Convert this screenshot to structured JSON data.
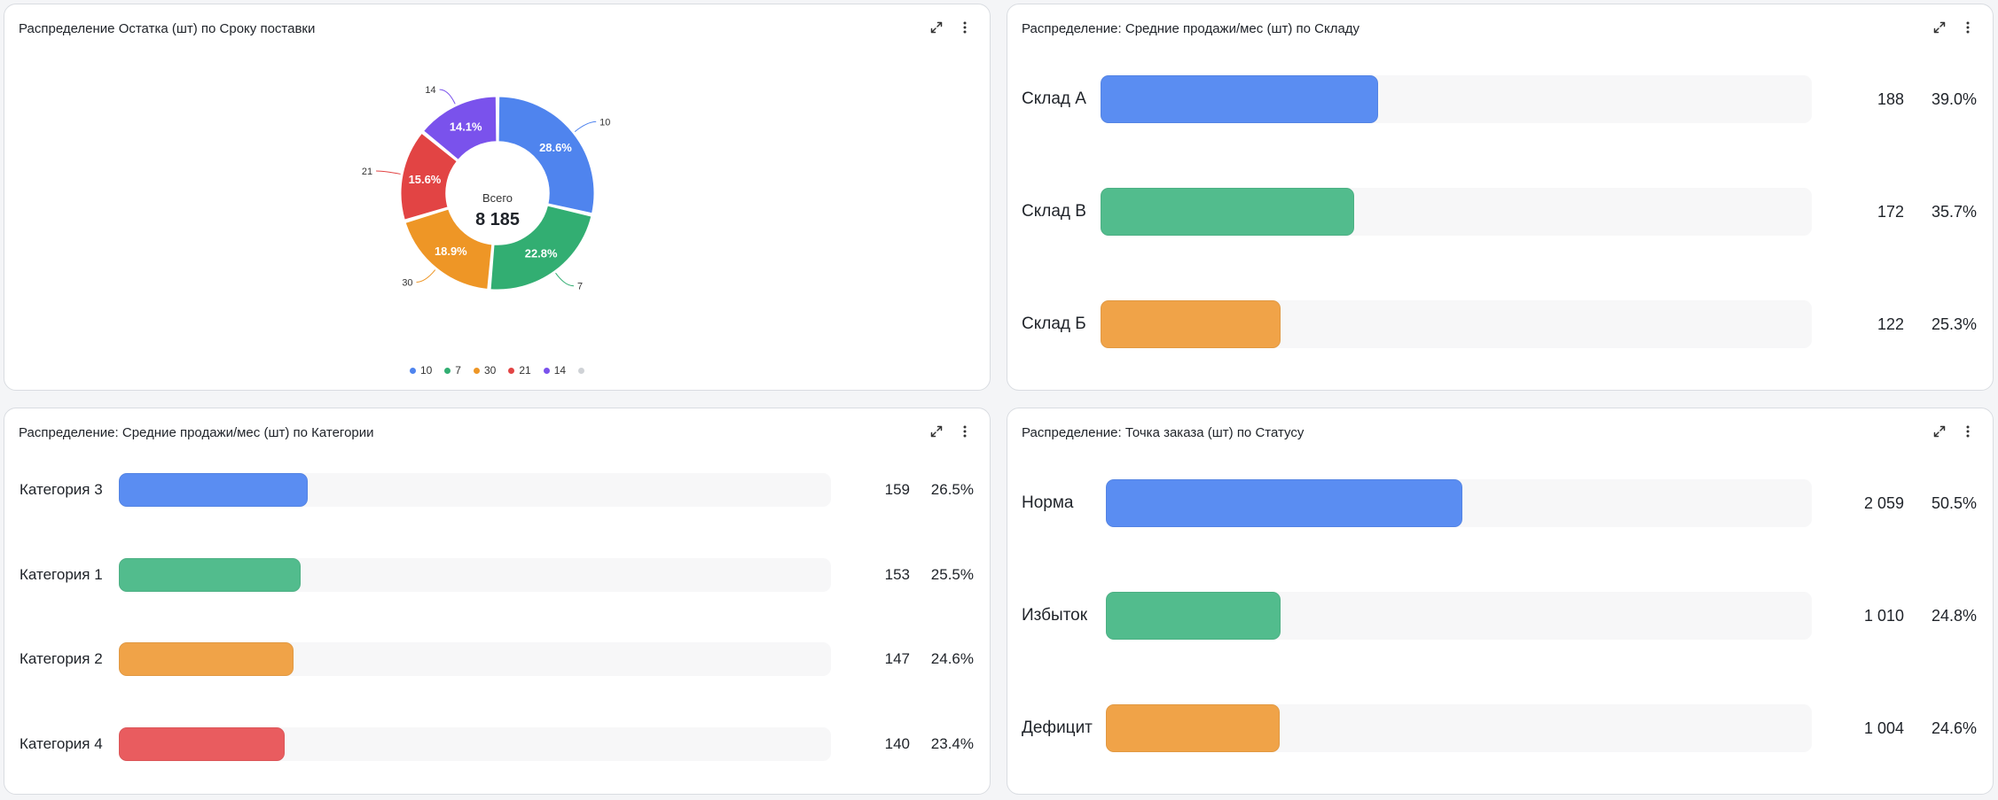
{
  "colors": {
    "blue": "#5a8df2",
    "green": "#52bc8d",
    "orange": "#f0a348",
    "red": "#e95c5f",
    "purple": "#7c5ce6",
    "grey": "#cfd2d6"
  },
  "icons": {
    "expand": "expand-icon",
    "menu": "kebab-menu-icon"
  },
  "panels": {
    "donut": {
      "title": "Распределение Остатка (шт) по Сроку поставки",
      "center_label": "Всего",
      "center_value": "8 185"
    },
    "warehouse": {
      "title": "Распределение: Средние продажи/мес (шт) по Складу"
    },
    "category": {
      "title": "Распределение: Средние продажи/мес (шт) по Категории"
    },
    "status": {
      "title": "Распределение: Точка заказа (шт) по Статусу"
    }
  },
  "chart_data": [
    {
      "type": "pie",
      "title": "Распределение Остатка (шт) по Сроку поставки",
      "donut": true,
      "total_label": "Всего",
      "total": 8185,
      "total_text": "8 185",
      "slices": [
        {
          "label": "10",
          "percent": 28.6,
          "percent_text": "28.6%",
          "color": "#4f84ee"
        },
        {
          "label": "7",
          "percent": 22.8,
          "percent_text": "22.8%",
          "color": "#32ae72"
        },
        {
          "label": "30",
          "percent": 18.9,
          "percent_text": "18.9%",
          "color": "#ee9626"
        },
        {
          "label": "21",
          "percent": 15.6,
          "percent_text": "15.6%",
          "color": "#e24444"
        },
        {
          "label": "14",
          "percent": 14.1,
          "percent_text": "14.1%",
          "color": "#7a52ec"
        }
      ],
      "legend": [
        "10",
        "7",
        "30",
        "21",
        "14",
        ""
      ],
      "legend_placement": "bottom"
    },
    {
      "type": "bar",
      "orientation": "horizontal",
      "title": "Распределение: Средние продажи/мес (шт) по Складу",
      "rows": [
        {
          "label": "Склад А",
          "value": 188,
          "value_text": "188",
          "percent": 39.0,
          "percent_text": "39.0%",
          "color": "#5a8df2"
        },
        {
          "label": "Склад В",
          "value": 172,
          "value_text": "172",
          "percent": 35.7,
          "percent_text": "35.7%",
          "color": "#52bc8d"
        },
        {
          "label": "Склад Б",
          "value": 122,
          "value_text": "122",
          "percent": 25.3,
          "percent_text": "25.3%",
          "color": "#f0a348"
        }
      ]
    },
    {
      "type": "bar",
      "orientation": "horizontal",
      "title": "Распределение: Средние продажи/мес (шт) по Категории",
      "rows": [
        {
          "label": "Категория 3",
          "value": 159,
          "value_text": "159",
          "percent": 26.5,
          "percent_text": "26.5%",
          "color": "#5a8df2"
        },
        {
          "label": "Категория 1",
          "value": 153,
          "value_text": "153",
          "percent": 25.5,
          "percent_text": "25.5%",
          "color": "#52bc8d"
        },
        {
          "label": "Категория 2",
          "value": 147,
          "value_text": "147",
          "percent": 24.6,
          "percent_text": "24.6%",
          "color": "#f0a348"
        },
        {
          "label": "Категория 4",
          "value": 140,
          "value_text": "140",
          "percent": 23.4,
          "percent_text": "23.4%",
          "color": "#e95c5f"
        }
      ]
    },
    {
      "type": "bar",
      "orientation": "horizontal",
      "title": "Распределение: Точка заказа (шт) по Статусу",
      "rows": [
        {
          "label": "Норма",
          "value": 2059,
          "value_text": "2 059",
          "percent": 50.5,
          "percent_text": "50.5%",
          "color": "#5a8df2"
        },
        {
          "label": "Избыток",
          "value": 1010,
          "value_text": "1 010",
          "percent": 24.8,
          "percent_text": "24.8%",
          "color": "#52bc8d"
        },
        {
          "label": "Дефицит",
          "value": 1004,
          "value_text": "1 004",
          "percent": 24.6,
          "percent_text": "24.6%",
          "color": "#f0a348"
        }
      ]
    }
  ]
}
